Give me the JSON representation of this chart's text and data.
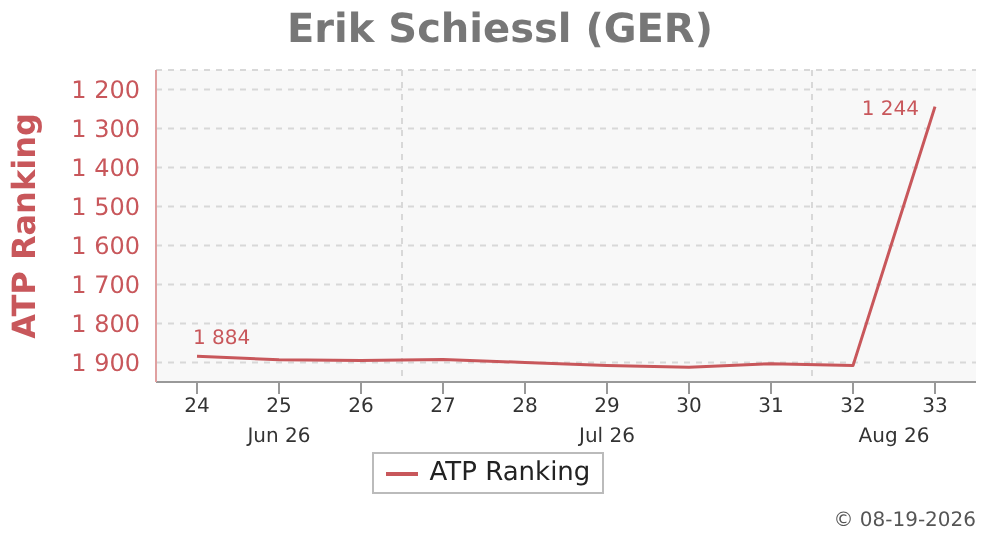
{
  "chart_data": {
    "type": "line",
    "title": "Erik Schiessl (GER)",
    "ylabel": "ATP Ranking",
    "categories": [
      "24",
      "25",
      "26",
      "27",
      "28",
      "29",
      "30",
      "31",
      "32",
      "33"
    ],
    "series": [
      {
        "name": "ATP Ranking",
        "color": "#c8575b",
        "values": [
          1884,
          1893,
          1895,
          1892,
          1900,
          1908,
          1912,
          1903,
          1908,
          1244
        ],
        "value_labels": [
          "1 884",
          null,
          null,
          null,
          null,
          null,
          null,
          null,
          null,
          "1 244"
        ]
      }
    ],
    "ylim": [
      1950,
      1150
    ],
    "yticks": [
      {
        "value": 1200,
        "label": "1 200"
      },
      {
        "value": 1300,
        "label": "1 300"
      },
      {
        "value": 1400,
        "label": "1 400"
      },
      {
        "value": 1500,
        "label": "1 500"
      },
      {
        "value": 1600,
        "label": "1 600"
      },
      {
        "value": 1700,
        "label": "1 700"
      },
      {
        "value": 1800,
        "label": "1 800"
      },
      {
        "value": 1900,
        "label": "1 900"
      }
    ],
    "annotations": [
      "Jun 26",
      "Jul 26",
      "Aug 26",
      "© 08-19-2026"
    ],
    "grid": true,
    "legend": "bottom",
    "marker": "none",
    "line_style": "solid"
  }
}
